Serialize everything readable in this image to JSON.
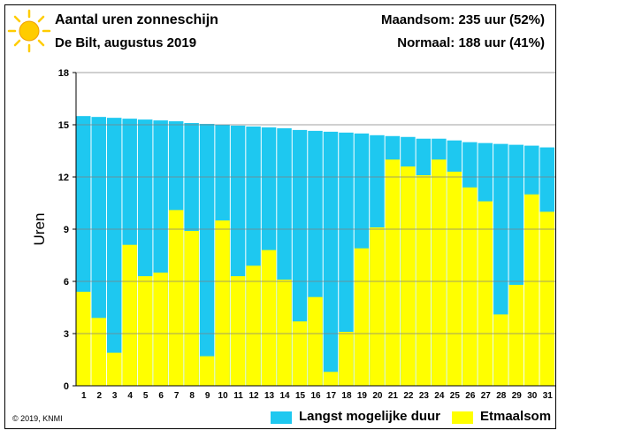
{
  "header": {
    "title": "Aantal uren zonneschijn",
    "subtitle": "De Bilt, augustus 2019",
    "month_sum": "Maandsom: 235 uur (52%)",
    "normal": "Normaal: 188 uur (41%)"
  },
  "footer": {
    "copyright": "© 2019, KNMI"
  },
  "colors": {
    "max_duration": "#1ec8f0",
    "daily_sum": "#ffff00",
    "sun": "#ffcc00"
  },
  "icons": {
    "sun": "sun-icon"
  },
  "chart_data": {
    "type": "bar",
    "ylabel": "Uren",
    "xlabel": "",
    "ylim": [
      0,
      18
    ],
    "yticks": [
      "0",
      "3",
      "6",
      "9",
      "12",
      "15",
      "18"
    ],
    "categories": [
      "1",
      "2",
      "3",
      "4",
      "5",
      "6",
      "7",
      "8",
      "9",
      "10",
      "11",
      "12",
      "13",
      "14",
      "15",
      "16",
      "17",
      "18",
      "19",
      "20",
      "21",
      "22",
      "23",
      "24",
      "25",
      "26",
      "27",
      "28",
      "29",
      "30",
      "31"
    ],
    "grid": true,
    "legend_position": "bottom",
    "series": [
      {
        "name": "Langst mogelijke duur",
        "values": [
          15.5,
          15.45,
          15.4,
          15.35,
          15.3,
          15.25,
          15.2,
          15.1,
          15.05,
          15.0,
          14.95,
          14.9,
          14.85,
          14.8,
          14.7,
          14.65,
          14.6,
          14.55,
          14.5,
          14.4,
          14.35,
          14.3,
          14.2,
          14.2,
          14.1,
          14.0,
          13.95,
          13.9,
          13.85,
          13.8,
          13.7
        ]
      },
      {
        "name": "Etmaalsom",
        "values": [
          5.4,
          3.9,
          1.9,
          8.1,
          6.3,
          6.5,
          10.1,
          8.9,
          1.7,
          9.5,
          6.3,
          6.9,
          7.8,
          6.1,
          3.7,
          5.1,
          0.8,
          3.1,
          7.9,
          9.1,
          13.0,
          12.6,
          12.1,
          13.0,
          12.3,
          11.4,
          10.6,
          4.1,
          5.8,
          11.0,
          10.0
        ]
      }
    ]
  }
}
